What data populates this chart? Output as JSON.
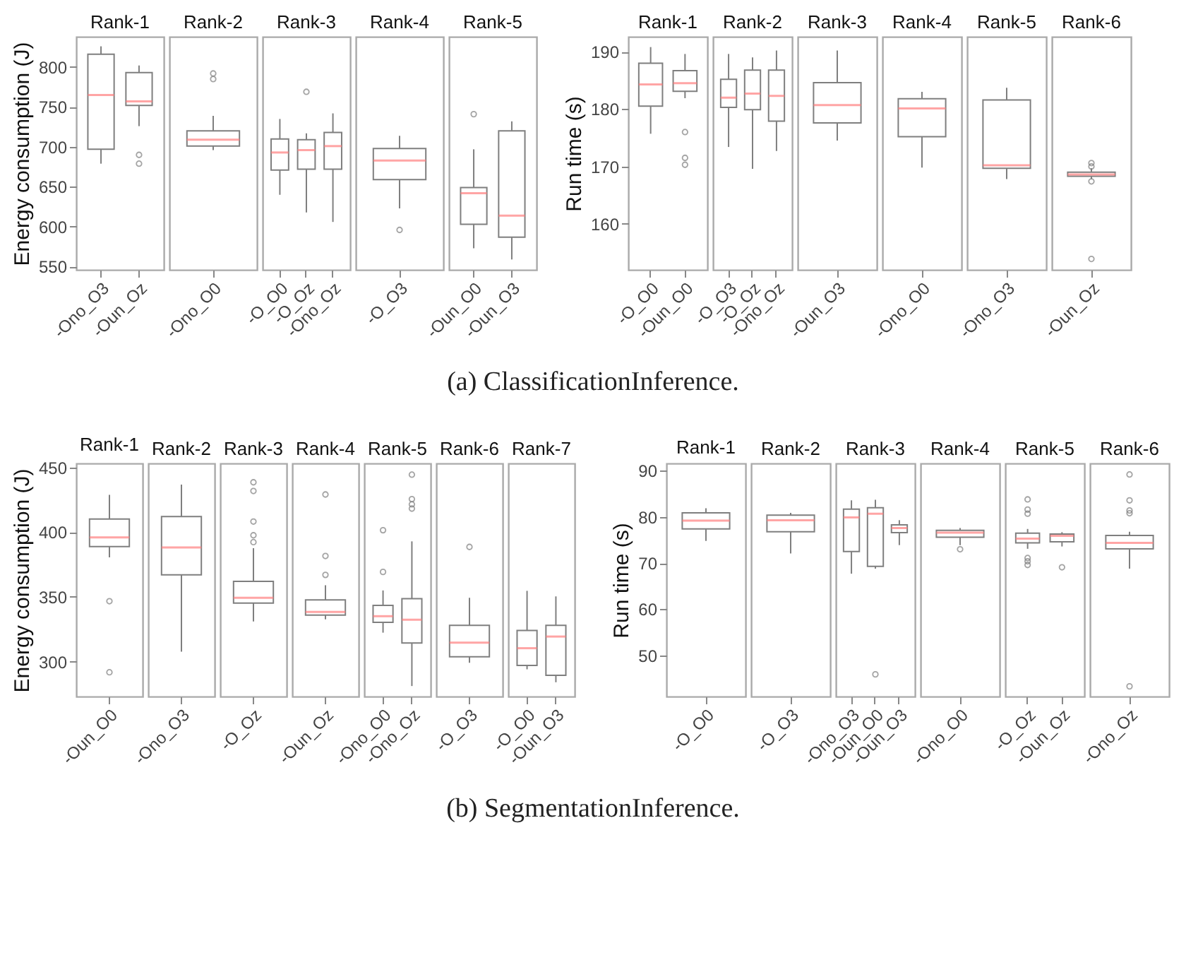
{
  "chart_data": [
    {
      "type": "box",
      "title": "Rank-1",
      "ylabel": "Energy consumption (J)",
      "categories": [
        "-Ono_O3",
        "-Oun_Oz"
      ],
      "ylim": [
        546,
        838
      ],
      "yticks": [
        550,
        600,
        650,
        700,
        750,
        800
      ],
      "annotations": [
        "(a) ClassificationInference."
      ],
      "series": [
        {
          "color": "#7f7f7f",
          "boxes": [
            {
              "low": 679,
              "q1": 697,
              "median": 765,
              "q3": 816,
              "high": 826
            },
            {
              "low": 726,
              "q1": 752,
              "median": 757,
              "q3": 793,
              "high": 802,
              "outliers": [
                690,
                679
              ]
            }
          ]
        }
      ]
    },
    {
      "type": "box",
      "title": "Rank-2",
      "categories": [
        "-Ono_O0"
      ],
      "ylim": [
        546,
        838
      ],
      "tick_labels": "x",
      "series": [
        {
          "color": "#7f7f7f",
          "boxes": [
            {
              "low": 696,
              "q1": 701,
              "median": 709,
              "q3": 720,
              "high": 739,
              "outliers": [
                792,
                785
              ]
            }
          ]
        }
      ]
    },
    {
      "type": "box",
      "title": "Rank-3",
      "categories": [
        "-O_O0",
        "-O_Oz",
        "-Ono_Oz"
      ],
      "ylim": [
        546,
        838
      ],
      "tick_labels": "x",
      "series": [
        {
          "color": "#7f7f7f",
          "boxes": [
            {
              "low": 640,
              "q1": 671,
              "median": 693,
              "q3": 710,
              "high": 735
            },
            {
              "low": 618,
              "q1": 672,
              "median": 696,
              "q3": 709,
              "high": 717,
              "outliers": [
                769
              ]
            },
            {
              "low": 606,
              "q1": 672,
              "median": 701,
              "q3": 718,
              "high": 742
            }
          ]
        }
      ]
    },
    {
      "type": "box",
      "title": "Rank-4",
      "categories": [
        "-O_O3"
      ],
      "ylim": [
        546,
        838
      ],
      "tick_labels": "x",
      "series": [
        {
          "color": "#7f7f7f",
          "boxes": [
            {
              "low": 623,
              "q1": 659,
              "median": 683,
              "q3": 698,
              "high": 714,
              "outliers": [
                596
              ]
            }
          ]
        }
      ]
    },
    {
      "type": "box",
      "title": "Rank-5",
      "categories": [
        "-Oun_O0",
        "-Oun_O3"
      ],
      "ylim": [
        546,
        838
      ],
      "tick_labels": "x",
      "series": [
        {
          "color": "#7f7f7f",
          "boxes": [
            {
              "low": 573,
              "q1": 603,
              "median": 642,
              "q3": 649,
              "high": 697,
              "outliers": [
                741
              ]
            },
            {
              "low": 559,
              "q1": 587,
              "median": 614,
              "q3": 720,
              "high": 732
            }
          ]
        }
      ]
    },
    {
      "type": "box",
      "title": "Rank-1",
      "ylabel": "Run time (s)",
      "categories": [
        "-O_O0",
        "-Oun_O0"
      ],
      "ylim": [
        152,
        192.6
      ],
      "yticks": [
        160,
        170,
        180,
        190
      ],
      "series": [
        {
          "color": "#7f7f7f",
          "boxes": [
            {
              "low": 175.7,
              "q1": 180.5,
              "median": 184.3,
              "q3": 188.0,
              "high": 190.8
            },
            {
              "low": 181.9,
              "q1": 183.1,
              "median": 184.5,
              "q3": 186.7,
              "high": 189.6,
              "outliers": [
                176.0,
                171.5,
                170.3
              ]
            }
          ]
        }
      ]
    },
    {
      "type": "box",
      "title": "Rank-2",
      "categories": [
        "-O_O3",
        "-O_Oz",
        "-Ono_Oz"
      ],
      "ylim": [
        152,
        192.6
      ],
      "tick_labels": "x",
      "series": [
        {
          "color": "#7f7f7f",
          "boxes": [
            {
              "low": 173.4,
              "q1": 180.3,
              "median": 182.0,
              "q3": 185.2,
              "high": 189.6
            },
            {
              "low": 169.6,
              "q1": 179.9,
              "median": 182.7,
              "q3": 186.8,
              "high": 189.0
            },
            {
              "low": 172.7,
              "q1": 177.9,
              "median": 182.3,
              "q3": 186.8,
              "high": 190.2
            }
          ]
        }
      ]
    },
    {
      "type": "box",
      "title": "Rank-3",
      "categories": [
        "-Oun_O3"
      ],
      "ylim": [
        152,
        192.6
      ],
      "tick_labels": "x",
      "series": [
        {
          "color": "#7f7f7f",
          "boxes": [
            {
              "low": 174.5,
              "q1": 177.6,
              "median": 180.7,
              "q3": 184.6,
              "high": 190.2
            }
          ]
        }
      ]
    },
    {
      "type": "box",
      "title": "Rank-4",
      "categories": [
        "-Ono_O0"
      ],
      "ylim": [
        152,
        192.6
      ],
      "tick_labels": "x",
      "series": [
        {
          "color": "#7f7f7f",
          "boxes": [
            {
              "low": 169.8,
              "q1": 175.2,
              "median": 180.1,
              "q3": 181.8,
              "high": 183.0
            }
          ]
        }
      ]
    },
    {
      "type": "box",
      "title": "Rank-5",
      "categories": [
        "-Ono_O3"
      ],
      "ylim": [
        152,
        192.6
      ],
      "tick_labels": "x",
      "series": [
        {
          "color": "#7f7f7f",
          "boxes": [
            {
              "low": 167.8,
              "q1": 169.7,
              "median": 170.2,
              "q3": 181.6,
              "high": 183.7
            }
          ]
        }
      ]
    },
    {
      "type": "box",
      "title": "Rank-6",
      "categories": [
        "-Oun_Oz"
      ],
      "ylim": [
        152,
        192.6
      ],
      "tick_labels": "x",
      "series": [
        {
          "color": "#7f7f7f",
          "boxes": [
            {
              "low": 167.8,
              "q1": 168.3,
              "median": 168.6,
              "q3": 169.0,
              "high": 169.7,
              "outliers": [
                170.6,
                170.0,
                167.4,
                153.9
              ]
            }
          ]
        }
      ]
    },
    {
      "type": "box",
      "title": "Rank-1",
      "ylabel": "Energy consumption (J)",
      "categories": [
        "-Oun_O0"
      ],
      "ylim": [
        273,
        453
      ],
      "yticks": [
        300,
        350,
        400,
        450
      ],
      "annotations": [
        "(b) SegmentationInference."
      ],
      "series": [
        {
          "color": "#7f7f7f",
          "boxes": [
            {
              "low": 380.5,
              "q1": 388.8,
              "median": 395.8,
              "q3": 410,
              "high": 428.7,
              "outliers": [
                346.6,
                291.7
              ]
            }
          ]
        }
      ]
    },
    {
      "type": "box",
      "title": "Rank-2",
      "categories": [
        "-Ono_O3"
      ],
      "ylim": [
        273,
        453
      ],
      "tick_labels": "x",
      "series": [
        {
          "color": "#7f7f7f",
          "boxes": [
            {
              "low": 307.7,
              "q1": 366.9,
              "median": 388.1,
              "q3": 412,
              "high": 436.7
            }
          ]
        }
      ]
    },
    {
      "type": "box",
      "title": "Rank-3",
      "categories": [
        "-O_Oz"
      ],
      "ylim": [
        273,
        453
      ],
      "tick_labels": "x",
      "series": [
        {
          "color": "#7f7f7f",
          "boxes": [
            {
              "low": 330.9,
              "q1": 345.2,
              "median": 349.2,
              "q3": 361.9,
              "high": 387.5,
              "outliers": [
                438.4,
                431.7,
                408.1,
                397.5,
                392.2
              ]
            }
          ]
        }
      ]
    },
    {
      "type": "box",
      "title": "Rank-4",
      "categories": [
        "-Oun_Oz"
      ],
      "ylim": [
        273,
        453
      ],
      "tick_labels": "x",
      "series": [
        {
          "color": "#7f7f7f",
          "boxes": [
            {
              "low": 332.6,
              "q1": 335.9,
              "median": 338.3,
              "q3": 347.6,
              "high": 358.9,
              "outliers": [
                429.0,
                381.5,
                366.9
              ]
            }
          ]
        }
      ]
    },
    {
      "type": "box",
      "title": "Rank-5",
      "categories": [
        "-Ono_O0",
        "-Ono_Oz"
      ],
      "ylim": [
        273,
        453
      ],
      "tick_labels": "x",
      "series": [
        {
          "color": "#7f7f7f",
          "boxes": [
            {
              "low": 322.3,
              "q1": 330.3,
              "median": 335.0,
              "q3": 343.3,
              "high": 354.9,
              "outliers": [
                401.4,
                369.2
              ]
            },
            {
              "low": 281.1,
              "q1": 314.3,
              "median": 332.3,
              "q3": 348.6,
              "high": 392.8,
              "outliers": [
                444.3,
                425.4,
                421.4,
                418.1
              ]
            }
          ]
        }
      ]
    },
    {
      "type": "box",
      "title": "Rank-6",
      "categories": [
        "-O_O3"
      ],
      "ylim": [
        273,
        453
      ],
      "tick_labels": "x",
      "series": [
        {
          "color": "#7f7f7f",
          "boxes": [
            {
              "low": 299.0,
              "q1": 303.7,
              "median": 314.6,
              "q3": 327.9,
              "high": 349.2,
              "outliers": [
                388.5
              ]
            }
          ]
        }
      ]
    },
    {
      "type": "box",
      "title": "Rank-7",
      "categories": [
        "-O_O0",
        "-Oun_O3"
      ],
      "ylim": [
        273,
        453
      ],
      "tick_labels": "x",
      "series": [
        {
          "color": "#7f7f7f",
          "boxes": [
            {
              "low": 294.0,
              "q1": 297.0,
              "median": 310.3,
              "q3": 324.0,
              "high": 354.6
            },
            {
              "low": 284.0,
              "q1": 289.4,
              "median": 319.3,
              "q3": 327.9,
              "high": 350.3
            }
          ]
        }
      ]
    },
    {
      "type": "box",
      "title": "Rank-1",
      "ylabel": "Run time (s)",
      "categories": [
        "-O_O0"
      ],
      "ylim": [
        41.1,
        91.6
      ],
      "yticks": [
        50,
        60,
        70,
        80,
        90
      ],
      "series": [
        {
          "color": "#7f7f7f",
          "boxes": [
            {
              "low": 74.8,
              "q1": 77.4,
              "median": 79.2,
              "q3": 80.9,
              "high": 81.9
            }
          ]
        }
      ]
    },
    {
      "type": "box",
      "title": "Rank-2",
      "categories": [
        "-O_O3"
      ],
      "ylim": [
        41.1,
        91.6
      ],
      "tick_labels": "x",
      "series": [
        {
          "color": "#7f7f7f",
          "boxes": [
            {
              "low": 72.1,
              "q1": 76.8,
              "median": 79.3,
              "q3": 80.4,
              "high": 80.9
            }
          ]
        }
      ]
    },
    {
      "type": "box",
      "title": "Rank-3",
      "categories": [
        "-Ono_O3",
        "-Oun_O0",
        "-Oun_O3"
      ],
      "ylim": [
        41.1,
        91.6
      ],
      "tick_labels": "x",
      "series": [
        {
          "color": "#7f7f7f",
          "boxes": [
            {
              "low": 67.7,
              "q1": 72.5,
              "median": 79.9,
              "q3": 81.7,
              "high": 83.6
            },
            {
              "low": 68.8,
              "q1": 69.3,
              "median": 80.7,
              "q3": 82.0,
              "high": 83.7,
              "outliers": [
                45.9
              ]
            },
            {
              "low": 73.9,
              "q1": 76.6,
              "median": 77.6,
              "q3": 78.3,
              "high": 79.3
            }
          ]
        }
      ]
    },
    {
      "type": "box",
      "title": "Rank-4",
      "categories": [
        "-Ono_O0"
      ],
      "ylim": [
        41.1,
        91.6
      ],
      "tick_labels": "x",
      "series": [
        {
          "color": "#7f7f7f",
          "boxes": [
            {
              "low": 73.9,
              "q1": 75.6,
              "median": 76.6,
              "q3": 77.1,
              "high": 77.6,
              "outliers": [
                73.0
              ]
            }
          ]
        }
      ]
    },
    {
      "type": "box",
      "title": "Rank-5",
      "categories": [
        "-O_Oz",
        "-Oun_Oz"
      ],
      "ylim": [
        41.1,
        91.6
      ],
      "tick_labels": "x",
      "series": [
        {
          "color": "#7f7f7f",
          "boxes": [
            {
              "low": 73.1,
              "q1": 74.4,
              "median": 75.3,
              "q3": 76.5,
              "high": 77.4,
              "outliers": [
                83.8,
                81.6,
                80.7,
                71.1,
                70.4,
                69.6
              ]
            },
            {
              "low": 73.6,
              "q1": 74.6,
              "median": 75.9,
              "q3": 76.3,
              "high": 76.7,
              "outliers": [
                69.1
              ]
            }
          ]
        }
      ]
    },
    {
      "type": "box",
      "title": "Rank-6",
      "categories": [
        "-Ono_Oz"
      ],
      "ylim": [
        41.1,
        91.6
      ],
      "tick_labels": "x",
      "series": [
        {
          "color": "#7f7f7f",
          "boxes": [
            {
              "low": 68.8,
              "q1": 73.1,
              "median": 74.4,
              "q3": 76.0,
              "high": 76.8,
              "outliers": [
                89.2,
                83.6,
                81.4,
                80.8,
                43.3
              ]
            }
          ]
        }
      ]
    }
  ]
}
